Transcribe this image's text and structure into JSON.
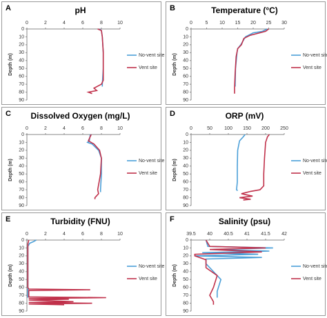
{
  "chart_data": [
    {
      "type": "line",
      "panel_label": "A",
      "title": "pH",
      "y_label": "Depth (m)",
      "y_inverted": true,
      "legend": "right",
      "xlim": [
        0,
        10
      ],
      "xticks": [
        0,
        2,
        4,
        6,
        8,
        10
      ],
      "ylim": [
        0,
        90
      ],
      "yticks": [
        0,
        10,
        20,
        30,
        40,
        50,
        60,
        70,
        80,
        90
      ],
      "series": [
        {
          "name": "No-vent site",
          "color": "#4a9fd8",
          "depth": [
            0,
            2,
            10,
            30,
            50,
            70,
            73
          ],
          "values": [
            7.8,
            8.0,
            8.1,
            8.2,
            8.2,
            8.1,
            8.1
          ]
        },
        {
          "name": "Vent site",
          "color": "#c0304a",
          "depth": [
            0,
            2,
            10,
            30,
            50,
            65,
            70,
            75,
            78,
            80,
            82
          ],
          "values": [
            7.6,
            8.0,
            8.1,
            8.2,
            8.2,
            8.2,
            8.0,
            7.2,
            7.5,
            6.6,
            7.0
          ]
        }
      ]
    },
    {
      "type": "line",
      "panel_label": "B",
      "title": "Temperature (°C)",
      "y_label": "Depth (m)",
      "y_inverted": true,
      "legend": "right",
      "xlim": [
        0,
        30
      ],
      "xticks": [
        0,
        5,
        10,
        15,
        20,
        25,
        30
      ],
      "ylim": [
        0,
        90
      ],
      "yticks": [
        0,
        10,
        20,
        30,
        40,
        50,
        60,
        70,
        80,
        90
      ],
      "series": [
        {
          "name": "No-vent site",
          "color": "#4a9fd8",
          "depth": [
            0,
            3,
            5,
            10,
            20,
            25,
            30,
            50,
            70,
            73
          ],
          "values": [
            24.5,
            23,
            20,
            17.5,
            16,
            15,
            14.8,
            14.3,
            14.2,
            14.2
          ]
        },
        {
          "name": "Vent site",
          "color": "#c0304a",
          "depth": [
            0,
            3,
            8,
            12,
            20,
            25,
            35,
            55,
            75,
            82
          ],
          "values": [
            25,
            24,
            19,
            17,
            16.2,
            15,
            14.5,
            14.2,
            14,
            14
          ]
        }
      ]
    },
    {
      "type": "line",
      "panel_label": "C",
      "title": "Dissolved Oxygen (mg/L)",
      "y_label": "Depth (m)",
      "y_inverted": true,
      "legend": "right",
      "xlim": [
        0,
        10
      ],
      "xticks": [
        0,
        2,
        4,
        6,
        8,
        10
      ],
      "ylim": [
        0,
        90
      ],
      "yticks": [
        0,
        10,
        20,
        30,
        40,
        50,
        60,
        70,
        80,
        90
      ],
      "series": [
        {
          "name": "No-vent site",
          "color": "#4a9fd8",
          "depth": [
            0,
            8,
            10,
            12,
            20,
            30,
            50,
            70,
            73
          ],
          "values": [
            6.8,
            6.7,
            6.5,
            7.0,
            7.7,
            8.0,
            8.0,
            7.9,
            7.9
          ]
        },
        {
          "name": "Vent site",
          "color": "#c0304a",
          "depth": [
            0,
            8,
            12,
            20,
            30,
            50,
            70,
            75,
            80,
            82
          ],
          "values": [
            6.9,
            6.6,
            7.2,
            7.8,
            8.0,
            7.9,
            7.6,
            7.7,
            7.3,
            7.3
          ]
        }
      ]
    },
    {
      "type": "line",
      "panel_label": "D",
      "title": "ORP (mV)",
      "y_label": "Depth (m)",
      "y_inverted": true,
      "legend": "right",
      "xlim": [
        0,
        250
      ],
      "xticks": [
        0,
        50,
        100,
        150,
        200,
        250
      ],
      "ylim": [
        0,
        90
      ],
      "yticks": [
        0,
        10,
        20,
        30,
        40,
        50,
        60,
        70,
        80,
        90
      ],
      "series": [
        {
          "name": "No-vent site",
          "color": "#4a9fd8",
          "depth": [
            0,
            3,
            8,
            20,
            40,
            60,
            70,
            71
          ],
          "values": [
            145,
            140,
            130,
            125,
            124,
            124,
            122,
            125
          ]
        },
        {
          "name": "Vent site",
          "color": "#c0304a",
          "depth": [
            0,
            3,
            10,
            30,
            50,
            65,
            70,
            72,
            75,
            78,
            80,
            82,
            83
          ],
          "values": [
            210,
            205,
            200,
            197,
            195,
            195,
            185,
            160,
            135,
            165,
            130,
            160,
            140
          ]
        }
      ]
    },
    {
      "type": "line",
      "panel_label": "E",
      "title": "Turbidity (FNU)",
      "y_label": "Depth (m)",
      "y_inverted": true,
      "legend": "right",
      "xlim": [
        0,
        10
      ],
      "xticks": [
        0,
        2,
        4,
        6,
        8,
        10
      ],
      "ylim": [
        0,
        90
      ],
      "yticks": [
        0,
        10,
        20,
        30,
        40,
        50,
        60,
        70,
        80,
        90
      ],
      "series": [
        {
          "name": "No-vent site",
          "color": "#4a9fd8",
          "depth": [
            0,
            2,
            4,
            8,
            30,
            60,
            73
          ],
          "values": [
            1.0,
            0.7,
            0.3,
            0.1,
            0.1,
            0.1,
            0.1
          ]
        },
        {
          "name": "Vent site",
          "color": "#c0304a",
          "depth": [
            0,
            5,
            60,
            62,
            63,
            64,
            72,
            73,
            74,
            75,
            76,
            78,
            79,
            80,
            81,
            82
          ],
          "values": [
            0.2,
            0.1,
            0.1,
            0.2,
            6.8,
            0.2,
            0.2,
            8.5,
            0.2,
            4.5,
            0.2,
            5.0,
            0.2,
            7.0,
            0.2,
            4.0
          ]
        }
      ]
    },
    {
      "type": "line",
      "panel_label": "F",
      "title": "Salinity (psu)",
      "y_label": "Depth (m)",
      "y_inverted": true,
      "legend": "right",
      "xlim": [
        39.5,
        42
      ],
      "xticks": [
        39.5,
        40,
        40.5,
        41,
        41.5,
        42
      ],
      "ylim": [
        0,
        90
      ],
      "yticks": [
        0,
        10,
        20,
        30,
        40,
        50,
        60,
        70,
        80,
        90
      ],
      "series": [
        {
          "name": "No-vent site",
          "color": "#4a9fd8",
          "depth": [
            0,
            8,
            10,
            12,
            14,
            16,
            18,
            20,
            22,
            24,
            30,
            50,
            65,
            73
          ],
          "values": [
            39.9,
            39.95,
            41.7,
            40.1,
            41.6,
            39.8,
            41.3,
            39.6,
            41.4,
            39.9,
            39.9,
            40.3,
            40.2,
            40.2
          ]
        },
        {
          "name": "Vent site",
          "color": "#c0304a",
          "depth": [
            0,
            8,
            10,
            12,
            15,
            18,
            20,
            25,
            35,
            45,
            60,
            70,
            78,
            82
          ],
          "values": [
            39.9,
            40.0,
            41.5,
            40.0,
            41.4,
            39.6,
            39.6,
            39.9,
            39.9,
            40.2,
            40.1,
            40.0,
            40.1,
            40.1
          ]
        }
      ]
    }
  ]
}
